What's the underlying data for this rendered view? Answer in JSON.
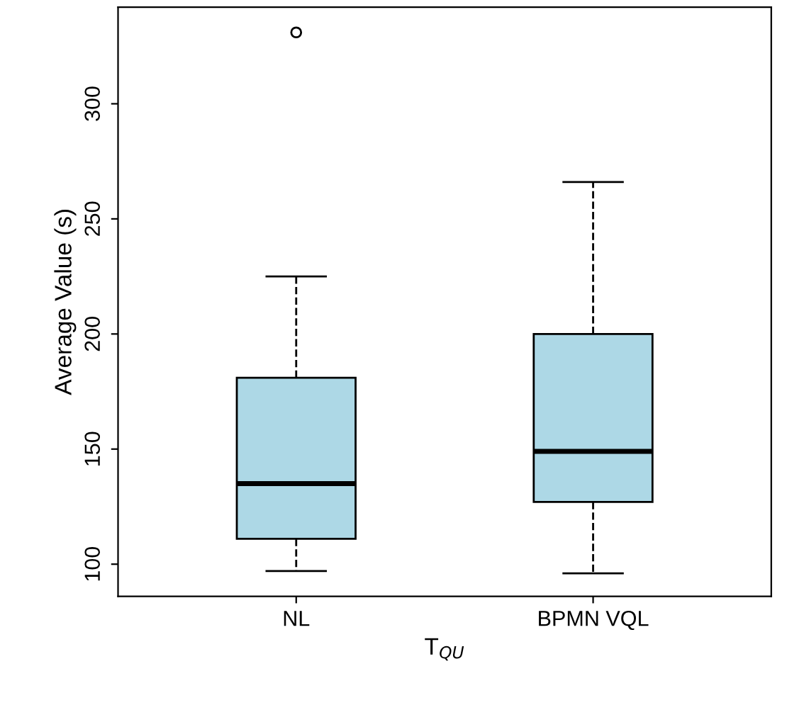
{
  "chart_data": {
    "type": "box",
    "categories": [
      "NL",
      "BPMN VQL"
    ],
    "xlabel": "T$_{QU}$",
    "ylabel": "Average Value (s)",
    "color": "#add8e6",
    "boxes": [
      {
        "low": 97,
        "q1": 111,
        "median": 135,
        "q3": 181,
        "high": 225,
        "outliers": [
          331
        ]
      },
      {
        "low": 96,
        "q1": 127,
        "median": 149,
        "q3": 200,
        "high": 266
      }
    ],
    "ylim": [
      86,
      342
    ],
    "yticks": [
      100,
      150,
      200,
      250,
      300
    ],
    "grid": false
  }
}
